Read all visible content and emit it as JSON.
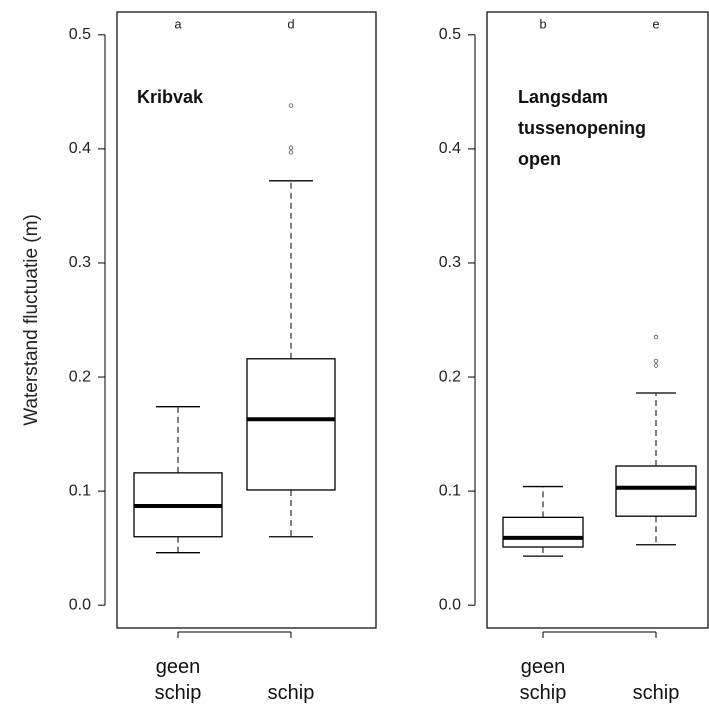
{
  "chart_data": [
    {
      "type": "box",
      "title": "Kribvak",
      "ylabel": "Waterstand fluctuatie (m)",
      "categories": [
        "geen schip",
        "schip"
      ],
      "box_labels": [
        "a",
        "d"
      ],
      "color": "#000000",
      "boxes": [
        {
          "whislo": 0.046,
          "q1": 0.06,
          "med": 0.087,
          "q3": 0.116,
          "whishi": 0.174,
          "fliers": []
        },
        {
          "whislo": 0.06,
          "q1": 0.101,
          "med": 0.163,
          "q3": 0.216,
          "whishi": 0.372,
          "fliers": [
            0.438,
            0.401,
            0.397
          ]
        }
      ],
      "ylim": [
        -0.02,
        0.52
      ],
      "yticks": [
        {
          "value": 0,
          "label": "0.0"
        },
        0.1,
        0.2,
        0.3,
        0.4,
        0.5
      ]
    },
    {
      "type": "box",
      "title": "Langsdam tussenopening open",
      "categories": [
        "geen schip",
        "schip"
      ],
      "box_labels": [
        "b",
        "e"
      ],
      "color": "#000000",
      "boxes": [
        {
          "whislo": 0.043,
          "q1": 0.051,
          "med": 0.059,
          "q3": 0.077,
          "whishi": 0.104,
          "fliers": []
        },
        {
          "whislo": 0.053,
          "q1": 0.078,
          "med": 0.103,
          "q3": 0.122,
          "whishi": 0.186,
          "fliers": [
            0.235,
            0.214,
            0.21
          ]
        }
      ],
      "ylim": [
        -0.02,
        0.52
      ],
      "yticks": [
        {
          "value": 0,
          "label": "0.0"
        },
        0.1,
        0.2,
        0.3,
        0.4,
        0.5
      ]
    }
  ]
}
